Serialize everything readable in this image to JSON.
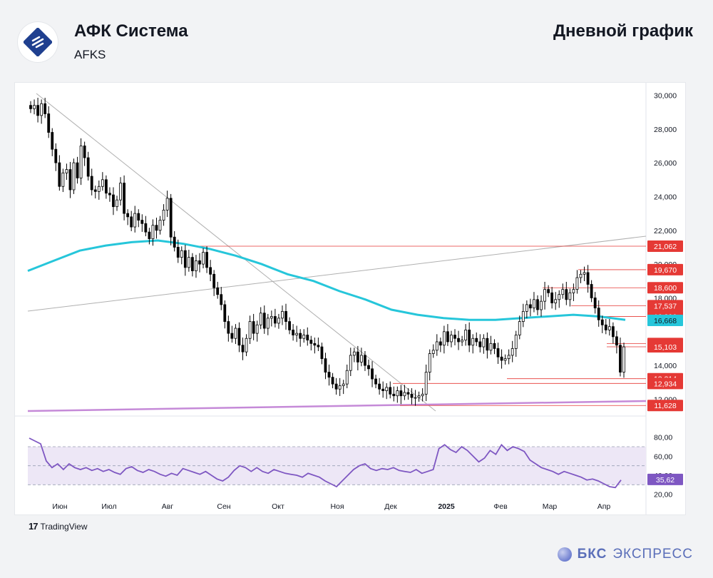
{
  "header": {
    "company": "АФК Система",
    "ticker": "AFKS",
    "chart_title": "Дневной график"
  },
  "footer": {
    "tradingview": "TradingView",
    "brand_bold": "БКС",
    "brand_rest": "ЭКСПРЕСС"
  },
  "colors": {
    "up": "#ffffff",
    "down": "#000000",
    "ma": "#26c6da",
    "level": "#e53935",
    "trend": "#b0b0b0",
    "support": "#c58ad8",
    "rsi": "#7e57c2",
    "rsi_band": "#ede7f6"
  },
  "chart_data": [
    {
      "type": "candlestick",
      "x_ticks": [
        "Июн",
        "Июл",
        "Авг",
        "Сен",
        "Окт",
        "Ноя",
        "Дек",
        "2025",
        "Фев",
        "Мар",
        "Апр"
      ],
      "y_ticks": [
        "30,000",
        "28,000",
        "26,000",
        "24,000",
        "22,000",
        "20,000",
        "18,000",
        "14,000",
        "12,000"
      ],
      "ylim": [
        11.3,
        30.4
      ],
      "series": [
        {
          "name": "",
          "close": [
            29.2,
            29.4,
            28.8,
            29.5,
            28.9,
            27.8,
            26.8,
            26.0,
            24.6,
            25.4,
            25.6,
            24.4,
            26.0,
            25.1,
            27.0,
            26.3,
            25.2,
            24.4,
            24.3,
            24.6,
            25.0,
            24.2,
            24.1,
            23.4,
            23.8,
            24.8,
            23.0,
            22.8,
            22.2,
            23.0,
            22.6,
            22.4,
            21.9,
            21.5,
            22.3,
            22.0,
            22.6,
            23.2,
            23.9,
            21.6,
            21.0,
            20.4,
            20.8,
            19.8,
            20.4,
            19.6,
            20.2,
            20.0,
            20.7,
            19.8,
            19.4,
            18.6,
            18.2,
            17.6,
            16.6,
            15.9,
            15.6,
            16.2,
            15.2,
            14.8,
            15.6,
            16.6,
            15.9,
            16.4,
            17.1,
            16.2,
            16.8,
            16.9,
            16.5,
            16.8,
            17.2,
            16.6,
            16.1,
            15.8,
            15.9,
            15.6,
            15.8,
            15.5,
            15.3,
            15.2,
            15.1,
            14.4,
            13.6,
            13.3,
            12.9,
            12.6,
            12.8,
            12.9,
            13.7,
            14.6,
            14.8,
            14.2,
            14.6,
            14.0,
            13.8,
            13.2,
            12.9,
            12.6,
            12.5,
            12.7,
            12.3,
            12.2,
            12.5,
            12.2,
            12.4,
            12.3,
            12.1,
            12.1,
            12.2,
            12.3,
            13.6,
            14.7,
            14.9,
            15.4,
            15.2,
            16.0,
            15.4,
            15.8,
            15.6,
            15.4,
            15.5,
            16.1,
            15.2,
            15.6,
            15.4,
            15.1,
            15.6,
            14.9,
            15.3,
            15.0,
            14.5,
            14.3,
            14.4,
            14.6,
            15.0,
            15.8,
            16.6,
            17.2,
            17.6,
            17.4,
            17.9,
            17.3,
            17.8,
            18.5,
            18.3,
            17.7,
            17.9,
            18.2,
            18.5,
            17.9,
            18.3,
            18.5,
            19.2,
            19.4,
            19.5,
            18.8,
            18.0,
            17.4,
            16.7,
            16.4,
            16.1,
            16.3,
            15.7,
            15.2,
            13.6,
            15.1
          ],
          "ma200": [
            19.6,
            20.2,
            20.8,
            21.1,
            21.3,
            21.4,
            21.2,
            20.9,
            20.5,
            20.0,
            19.4,
            19.0,
            18.4,
            17.9,
            17.3,
            17.0,
            16.8,
            16.7,
            16.7,
            16.8,
            16.9,
            17.0,
            16.9,
            16.7
          ]
        },
        {
          "name": "RSI",
          "values": [
            79,
            76,
            73,
            55,
            48,
            52,
            46,
            52,
            48,
            46,
            48,
            45,
            47,
            44,
            46,
            43,
            41,
            47,
            49,
            45,
            43,
            46,
            44,
            41,
            39,
            42,
            40,
            47,
            45,
            43,
            41,
            44,
            40,
            36,
            34,
            38,
            45,
            50,
            48,
            44,
            48,
            44,
            42,
            46,
            44,
            42,
            41,
            40,
            38,
            42,
            40,
            38,
            34,
            31,
            28,
            34,
            40,
            46,
            50,
            52,
            47,
            45,
            47,
            46,
            48,
            45,
            44,
            43,
            46,
            42,
            44,
            46,
            68,
            72,
            67,
            64,
            70,
            66,
            60,
            54,
            58,
            66,
            62,
            72,
            66,
            70,
            68,
            65,
            56,
            52,
            48,
            46,
            44,
            41,
            44,
            42,
            40,
            38,
            35,
            36,
            34,
            31,
            28,
            27,
            35
          ],
          "rsi_ticks": [
            "80,00",
            "60,00",
            "40,00",
            "20,00"
          ],
          "rsi_band": [
            30,
            70
          ]
        }
      ],
      "price_labels": [
        "21,062",
        "19,670",
        "18,600",
        "17,537",
        "16,896",
        "15,299",
        "15,103",
        "13,214",
        "12,934",
        "11,628"
      ],
      "ma_label": "16,668",
      "rsi_label": "35,62"
    }
  ]
}
